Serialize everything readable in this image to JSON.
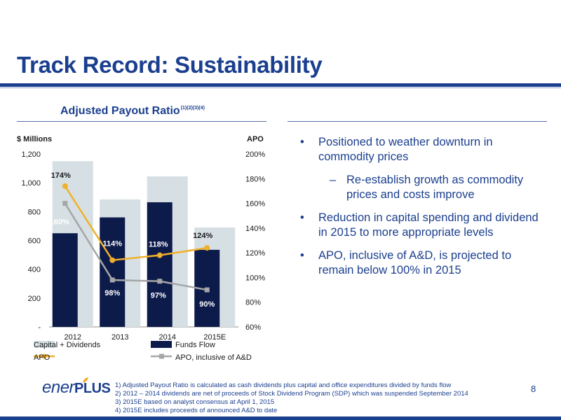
{
  "slide": {
    "title": "Track Record: Sustainability",
    "page_number": "8"
  },
  "chart_heading": {
    "text": "Adjusted Payout Ratio",
    "superscript": "(1)(2)(3)(4)"
  },
  "chart_data": {
    "type": "bar",
    "categories": [
      "2012",
      "2013",
      "2014",
      "2015E"
    ],
    "left_axis": {
      "label": "$ Millions",
      "ylim": [
        0,
        1200
      ],
      "ticks": [
        "-",
        "200",
        "400",
        "600",
        "800",
        "1,000",
        "1,200"
      ],
      "tick_values": [
        0,
        200,
        400,
        600,
        800,
        1000,
        1200
      ]
    },
    "right_axis": {
      "label": "APO",
      "ylim": [
        60,
        200
      ],
      "ticks": [
        "60%",
        "80%",
        "100%",
        "120%",
        "140%",
        "160%",
        "180%",
        "200%"
      ],
      "tick_values": [
        60,
        80,
        100,
        120,
        140,
        160,
        180,
        200
      ]
    },
    "series": [
      {
        "name": "Capital + Dividends",
        "kind": "bar",
        "axis": "left",
        "values": [
          1150,
          885,
          1045,
          690
        ],
        "color": "#d6e0e4"
      },
      {
        "name": "Funds Flow",
        "kind": "bar",
        "axis": "left",
        "values": [
          650,
          760,
          865,
          535
        ],
        "color": "#0d1b4b"
      },
      {
        "name": "APO",
        "kind": "line",
        "axis": "right",
        "values": [
          174,
          114,
          118,
          124
        ],
        "labels": [
          "174%",
          "114%",
          "118%",
          "124%"
        ],
        "color": "#f0b02b"
      },
      {
        "name": "APO, inclusive of A&D",
        "kind": "line",
        "axis": "right",
        "values": [
          160,
          98,
          97,
          90
        ],
        "labels": [
          "160%",
          "98%",
          "97%",
          "90%"
        ],
        "color": "#a6a6a6"
      }
    ],
    "legend_placement": "bottom"
  },
  "bullets": [
    {
      "text": "Positioned to weather downturn in commodity prices"
    },
    {
      "text": "Re-establish growth as commodity prices and costs improve",
      "sub": true
    },
    {
      "text": "Reduction in capital spending and dividend in 2015 to more appropriate levels"
    },
    {
      "text": "APO, inclusive of A&D, is projected to remain below 100% in 2015"
    }
  ],
  "bullet_glyph": "•",
  "dash_glyph": "–",
  "logo": {
    "part1": "ener",
    "part2": "PLUS"
  },
  "footnotes": [
    "1)  Adjusted Payout Ratio is calculated as cash dividends plus capital and office expenditures divided by funds flow",
    "2)  2012 – 2014 dividends are net of proceeds of Stock Dividend Program (SDP) which was suspended September 2014",
    "3)  2015E based on analyst consensus at April 1, 2015",
    "4)  2015E includes proceeds of announced A&D to date"
  ]
}
